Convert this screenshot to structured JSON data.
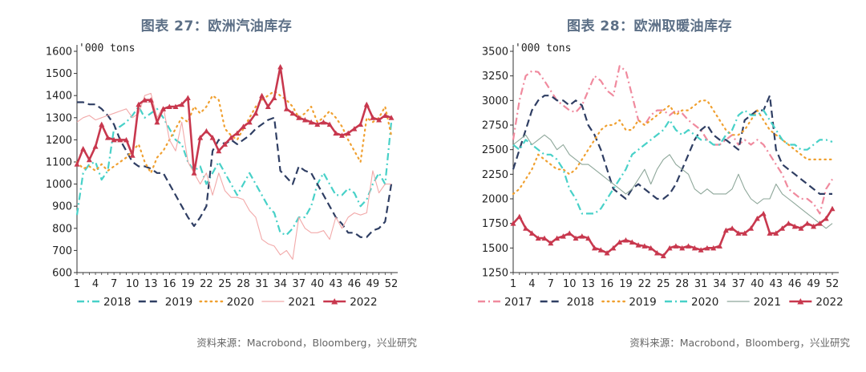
{
  "charts": [
    {
      "title": "图表 27：欧洲汽油库存",
      "unit": "'000 tons",
      "source": "资料来源：Macrobond，Bloomberg，兴业研究",
      "chart_data": {
        "type": "line",
        "ylim": [
          600,
          1600
        ],
        "yticks": [
          600,
          700,
          800,
          900,
          1000,
          1100,
          1200,
          1300,
          1400,
          1500,
          1600
        ],
        "xticks": [
          1,
          4,
          7,
          10,
          13,
          16,
          19,
          22,
          25,
          28,
          31,
          34,
          37,
          40,
          43,
          46,
          49,
          52
        ],
        "xlim": [
          1,
          52
        ],
        "legend_position": "bottom",
        "series": [
          {
            "name": "2018",
            "color": "#48d1c8",
            "style": "dashdot",
            "values": [
              860,
              1050,
              1090,
              1100,
              1020,
              1060,
              1250,
              1260,
              1280,
              1310,
              1350,
              1300,
              1320,
              1340,
              1300,
              1250,
              1200,
              1180,
              1100,
              1060,
              1080,
              1000,
              1050,
              1100,
              1050,
              1000,
              950,
              1000,
              1050,
              1000,
              950,
              900,
              870,
              780,
              770,
              800,
              850,
              850,
              900,
              1000,
              1050,
              1000,
              950,
              950,
              980,
              960,
              900,
              930,
              1000,
              1050,
              1000,
              1280
            ]
          },
          {
            "name": "2019",
            "color": "#2f3e63",
            "style": "dash",
            "values": [
              1370,
              1370,
              1360,
              1360,
              1340,
              1310,
              1270,
              1200,
              1150,
              1100,
              1080,
              1080,
              1070,
              1050,
              1050,
              1000,
              950,
              900,
              850,
              810,
              850,
              900,
              1150,
              1200,
              1180,
              1200,
              1180,
              1200,
              1220,
              1250,
              1270,
              1290,
              1300,
              1060,
              1030,
              1000,
              1080,
              1060,
              1050,
              1000,
              950,
              900,
              850,
              820,
              780,
              780,
              760,
              760,
              790,
              800,
              830,
              1000
            ]
          },
          {
            "name": "2020",
            "color": "#f0a030",
            "style": "dot",
            "values": [
              1100,
              1070,
              1080,
              1060,
              1090,
              1060,
              1080,
              1100,
              1120,
              1150,
              1180,
              1100,
              1050,
              1120,
              1150,
              1200,
              1250,
              1300,
              1280,
              1350,
              1320,
              1350,
              1400,
              1380,
              1250,
              1220,
              1200,
              1250,
              1300,
              1350,
              1380,
              1400,
              1420,
              1400,
              1380,
              1350,
              1300,
              1320,
              1350,
              1280,
              1300,
              1330,
              1300,
              1260,
              1200,
              1150,
              1100,
              1300,
              1280,
              1300,
              1350,
              1220
            ]
          },
          {
            "name": "2021",
            "color": "#f2a9a9",
            "style": "solid",
            "values": [
              1280,
              1300,
              1310,
              1290,
              1300,
              1310,
              1320,
              1330,
              1340,
              1300,
              1320,
              1400,
              1410,
              1300,
              1350,
              1200,
              1150,
              1280,
              1100,
              1050,
              1000,
              1050,
              950,
              1050,
              970,
              940,
              940,
              930,
              880,
              850,
              750,
              730,
              720,
              680,
              700,
              660,
              850,
              800,
              780,
              780,
              790,
              750,
              850,
              800,
              850,
              870,
              860,
              870,
              1060,
              960,
              1000,
              1000
            ]
          },
          {
            "name": "2022",
            "color": "#c8384e",
            "style": "marker",
            "values": [
              1090,
              1160,
              1110,
              1170,
              1270,
              1210,
              1200,
              1200,
              1200,
              1130,
              1360,
              1380,
              1380,
              1280,
              1340,
              1350,
              1350,
              1360,
              1390,
              1050,
              1210,
              1240,
              1210,
              1150,
              1180,
              1210,
              1230,
              1260,
              1280,
              1320,
              1400,
              1350,
              1390,
              1530,
              1340,
              1320,
              1300,
              1290,
              1280,
              1270,
              1280,
              1270,
              1230,
              1220,
              1230,
              1250,
              1270,
              1360,
              1300,
              1290,
              1310,
              1300
            ]
          }
        ]
      }
    },
    {
      "title": "图表 28：欧洲取暖油库存",
      "unit": "'000 tons",
      "source": "资料来源：Macrobond，Bloomberg，兴业研究",
      "chart_data": {
        "type": "line",
        "ylim": [
          1250,
          3500
        ],
        "yticks": [
          1250,
          1500,
          1750,
          2000,
          2250,
          2500,
          2750,
          3000,
          3250,
          3500
        ],
        "xticks": [
          1,
          4,
          7,
          10,
          13,
          16,
          19,
          22,
          25,
          28,
          31,
          34,
          37,
          40,
          43,
          46,
          49,
          52
        ],
        "xlim": [
          1,
          52
        ],
        "legend_position": "bottom",
        "series": [
          {
            "name": "2017",
            "color": "#f08a9e",
            "style": "dashdot",
            "values": [
              2600,
              3000,
              3250,
              3300,
              3290,
              3200,
              3100,
              3000,
              2950,
              2900,
              2880,
              2950,
              3100,
              3250,
              3200,
              3100,
              3050,
              3350,
              3300,
              3050,
              2800,
              2750,
              2850,
              2900,
              2900,
              2850,
              2900,
              2870,
              2800,
              2750,
              2700,
              2600,
              2550,
              2550,
              2600,
              2650,
              2550,
              2600,
              2550,
              2600,
              2550,
              2450,
              2350,
              2250,
              2100,
              2050,
              2000,
              2000,
              1950,
              1850,
              2100,
              2200
            ]
          },
          {
            "name": "2018",
            "color": "#2f3e63",
            "style": "dash",
            "values": [
              2300,
              2500,
              2700,
              2900,
              3000,
              3050,
              3050,
              3000,
              3000,
              2950,
              3000,
              2950,
              2750,
              2650,
              2500,
              2300,
              2100,
              2050,
              2000,
              2100,
              2150,
              2100,
              2050,
              2000,
              2000,
              2050,
              2150,
              2300,
              2450,
              2600,
              2700,
              2750,
              2650,
              2600,
              2600,
              2550,
              2500,
              2800,
              2850,
              2900,
              2900,
              3050,
              2500,
              2350,
              2300,
              2250,
              2200,
              2150,
              2100,
              2050,
              2050,
              2050
            ]
          },
          {
            "name": "2019",
            "color": "#f0a030",
            "style": "dot",
            "values": [
              2050,
              2100,
              2200,
              2300,
              2450,
              2400,
              2350,
              2300,
              2300,
              2250,
              2300,
              2400,
              2500,
              2600,
              2700,
              2750,
              2750,
              2800,
              2700,
              2700,
              2800,
              2750,
              2800,
              2850,
              2900,
              2950,
              2850,
              2900,
              2900,
              2950,
              3000,
              3000,
              2900,
              2800,
              2700,
              2650,
              2650,
              2700,
              2800,
              2900,
              2800,
              2700,
              2650,
              2600,
              2550,
              2500,
              2450,
              2400,
              2400,
              2400,
              2400,
              2400
            ]
          },
          {
            "name": "2020",
            "color": "#48d1c8",
            "style": "dashdot",
            "values": [
              2550,
              2500,
              2600,
              2550,
              2500,
              2450,
              2450,
              2400,
              2300,
              2100,
              2000,
              1850,
              1850,
              1850,
              1900,
              2000,
              2100,
              2200,
              2300,
              2450,
              2500,
              2550,
              2600,
              2650,
              2700,
              2800,
              2700,
              2650,
              2700,
              2650,
              2600,
              2600,
              2550,
              2550,
              2650,
              2700,
              2850,
              2900,
              2850,
              2850,
              2900,
              2800,
              2700,
              2600,
              2550,
              2550,
              2500,
              2500,
              2550,
              2600,
              2600,
              2580
            ]
          },
          {
            "name": "2021",
            "color": "#8ea79a",
            "style": "solid",
            "values": [
              2550,
              2600,
              2650,
              2550,
              2600,
              2650,
              2600,
              2500,
              2550,
              2450,
              2400,
              2350,
              2350,
              2300,
              2250,
              2200,
              2150,
              2100,
              2050,
              2100,
              2200,
              2300,
              2150,
              2300,
              2400,
              2450,
              2350,
              2300,
              2250,
              2100,
              2050,
              2100,
              2050,
              2050,
              2050,
              2100,
              2250,
              2100,
              2000,
              1950,
              2000,
              2000,
              2150,
              2050,
              2000,
              1950,
              1900,
              1850,
              1800,
              1750,
              1700,
              1750
            ]
          },
          {
            "name": "2022",
            "color": "#c8384e",
            "style": "marker",
            "values": [
              1750,
              1820,
              1700,
              1650,
              1600,
              1600,
              1550,
              1600,
              1620,
              1650,
              1600,
              1620,
              1600,
              1500,
              1480,
              1450,
              1500,
              1560,
              1580,
              1560,
              1530,
              1520,
              1500,
              1450,
              1420,
              1500,
              1520,
              1500,
              1520,
              1500,
              1480,
              1500,
              1500,
              1520,
              1680,
              1700,
              1650,
              1650,
              1700,
              1800,
              1850,
              1650,
              1650,
              1700,
              1750,
              1720,
              1700,
              1750,
              1720,
              1750,
              1800,
              1900
            ]
          }
        ]
      }
    }
  ]
}
